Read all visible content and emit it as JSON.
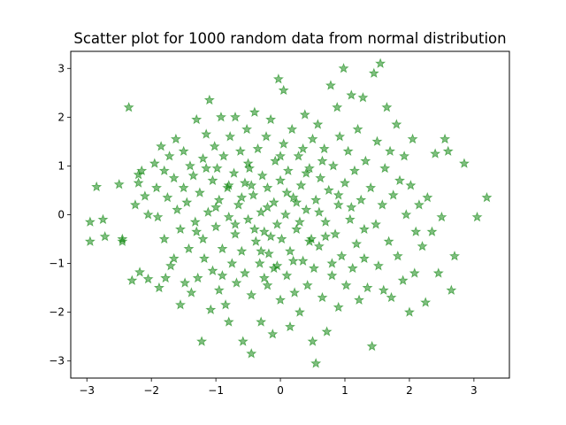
{
  "chart_data": {
    "type": "scatter",
    "title": "Scatter plot for 1000 random data from normal distribution",
    "xlabel": "",
    "ylabel": "",
    "xlim": [
      -3.25,
      3.55
    ],
    "ylim": [
      -3.35,
      3.35
    ],
    "x_ticks": [
      -3,
      -2,
      -1,
      0,
      1,
      2,
      3
    ],
    "y_ticks": [
      -3,
      -2,
      -1,
      0,
      1,
      2,
      3
    ],
    "x_tick_labels": [
      "−3",
      "−2",
      "−1",
      "0",
      "1",
      "2",
      "3"
    ],
    "y_tick_labels": [
      "−3",
      "−2",
      "−1",
      "0",
      "1",
      "2",
      "3"
    ],
    "grid": false,
    "legend": "none",
    "marker": "star",
    "point_count": 1000,
    "color": "#008000",
    "points": [
      [
        -2.95,
        -0.15
      ],
      [
        -2.95,
        -0.55
      ],
      [
        -2.85,
        0.57
      ],
      [
        -2.75,
        -0.1
      ],
      [
        -2.72,
        -0.45
      ],
      [
        -2.5,
        0.62
      ],
      [
        -2.45,
        -0.5
      ],
      [
        -2.45,
        -0.55
      ],
      [
        -2.35,
        2.2
      ],
      [
        -2.3,
        -1.35
      ],
      [
        -2.25,
        0.2
      ],
      [
        -2.2,
        0.82
      ],
      [
        -2.2,
        0.65
      ],
      [
        -2.18,
        -1.18
      ],
      [
        -2.15,
        0.9
      ],
      [
        -2.1,
        0.38
      ],
      [
        -2.05,
        0.0
      ],
      [
        -2.05,
        -1.32
      ],
      [
        -1.95,
        1.05
      ],
      [
        -1.92,
        0.55
      ],
      [
        -1.9,
        -0.05
      ],
      [
        -1.88,
        -1.5
      ],
      [
        -1.85,
        1.4
      ],
      [
        -1.8,
        0.9
      ],
      [
        -1.8,
        -0.5
      ],
      [
        -1.78,
        -1.3
      ],
      [
        -1.75,
        0.35
      ],
      [
        -1.72,
        1.2
      ],
      [
        -1.7,
        -1.05
      ],
      [
        -1.65,
        0.75
      ],
      [
        -1.65,
        -0.9
      ],
      [
        -1.62,
        1.55
      ],
      [
        -1.6,
        0.1
      ],
      [
        -1.55,
        -1.85
      ],
      [
        -1.55,
        -0.3
      ],
      [
        -1.5,
        1.3
      ],
      [
        -1.5,
        0.55
      ],
      [
        -1.48,
        -1.4
      ],
      [
        -1.45,
        0.25
      ],
      [
        -1.42,
        -0.7
      ],
      [
        -1.4,
        1.0
      ],
      [
        -1.38,
        -1.6
      ],
      [
        -1.35,
        0.8
      ],
      [
        -1.32,
        -0.15
      ],
      [
        -1.3,
        1.95
      ],
      [
        -1.28,
        -1.3
      ],
      [
        -1.25,
        0.45
      ],
      [
        -1.22,
        -2.6
      ],
      [
        -1.2,
        1.15
      ],
      [
        -1.2,
        -0.5
      ],
      [
        -1.18,
        -0.9
      ],
      [
        -1.15,
        1.65
      ],
      [
        -1.12,
        0.05
      ],
      [
        -1.1,
        2.35
      ],
      [
        -1.08,
        -1.95
      ],
      [
        -1.05,
        0.7
      ],
      [
        -1.05,
        -1.15
      ],
      [
        -1.02,
        1.4
      ],
      [
        -1.0,
        -0.25
      ],
      [
        -0.98,
        0.95
      ],
      [
        -0.95,
        -1.55
      ],
      [
        -0.95,
        0.3
      ],
      [
        -0.92,
        2.0
      ],
      [
        -0.9,
        -0.7
      ],
      [
        -0.88,
        1.2
      ],
      [
        -0.85,
        -1.85
      ],
      [
        -0.82,
        0.55
      ],
      [
        -0.8,
        -0.05
      ],
      [
        -0.8,
        -2.2
      ],
      [
        -0.78,
        1.6
      ],
      [
        -0.75,
        -1.0
      ],
      [
        -0.72,
        0.85
      ],
      [
        -0.7,
        -0.4
      ],
      [
        -0.7,
        2.0
      ],
      [
        -0.68,
        -1.4
      ],
      [
        -0.65,
        0.2
      ],
      [
        -0.62,
        1.3
      ],
      [
        -0.6,
        -0.75
      ],
      [
        -0.58,
        -2.6
      ],
      [
        -0.55,
        0.65
      ],
      [
        -0.55,
        -1.2
      ],
      [
        -0.52,
        1.75
      ],
      [
        -0.5,
        -0.1
      ],
      [
        -0.48,
        0.95
      ],
      [
        -0.45,
        -1.65
      ],
      [
        -0.45,
        -2.85
      ],
      [
        -0.42,
        0.4
      ],
      [
        -0.4,
        2.1
      ],
      [
        -0.38,
        -0.55
      ],
      [
        -0.35,
        1.35
      ],
      [
        -0.32,
        -1.0
      ],
      [
        -0.3,
        0.05
      ],
      [
        -0.3,
        -2.2
      ],
      [
        -0.28,
        0.8
      ],
      [
        -0.25,
        -0.35
      ],
      [
        -0.22,
        1.6
      ],
      [
        -0.2,
        -1.45
      ],
      [
        -0.2,
        0.55
      ],
      [
        -0.18,
        -0.8
      ],
      [
        -0.15,
        1.95
      ],
      [
        -0.12,
        -2.45
      ],
      [
        -0.1,
        0.25
      ],
      [
        -0.1,
        -1.1
      ],
      [
        -0.08,
        1.1
      ],
      [
        -0.05,
        -0.2
      ],
      [
        -0.03,
        2.78
      ],
      [
        0.0,
        0.7
      ],
      [
        0.0,
        -1.75
      ],
      [
        0.02,
        -0.5
      ],
      [
        0.05,
        1.45
      ],
      [
        0.05,
        2.55
      ],
      [
        0.08,
        0.0
      ],
      [
        0.1,
        -1.25
      ],
      [
        0.12,
        0.9
      ],
      [
        0.15,
        -2.3
      ],
      [
        0.15,
        -0.75
      ],
      [
        0.18,
        1.75
      ],
      [
        0.2,
        0.35
      ],
      [
        0.22,
        -1.6
      ],
      [
        0.25,
        -0.3
      ],
      [
        0.28,
        1.2
      ],
      [
        0.3,
        -2.0
      ],
      [
        0.32,
        0.6
      ],
      [
        0.35,
        -0.95
      ],
      [
        0.38,
        2.05
      ],
      [
        0.4,
        0.1
      ],
      [
        0.42,
        -1.45
      ],
      [
        0.45,
        0.95
      ],
      [
        0.48,
        -0.5
      ],
      [
        0.5,
        1.55
      ],
      [
        0.5,
        -2.6
      ],
      [
        0.52,
        -1.1
      ],
      [
        0.55,
        0.3
      ],
      [
        0.55,
        -3.05
      ],
      [
        0.58,
        1.85
      ],
      [
        0.6,
        -0.65
      ],
      [
        0.62,
        0.75
      ],
      [
        0.65,
        -1.7
      ],
      [
        0.68,
        1.35
      ],
      [
        0.7,
        -0.15
      ],
      [
        0.72,
        -2.4
      ],
      [
        0.75,
        0.5
      ],
      [
        0.78,
        2.65
      ],
      [
        0.8,
        -1.25
      ],
      [
        0.82,
        1.0
      ],
      [
        0.85,
        -0.4
      ],
      [
        0.88,
        2.2
      ],
      [
        0.9,
        -1.9
      ],
      [
        0.9,
        0.2
      ],
      [
        0.92,
        1.6
      ],
      [
        0.95,
        -0.85
      ],
      [
        0.98,
        3.0
      ],
      [
        1.0,
        0.65
      ],
      [
        1.02,
        -1.45
      ],
      [
        1.05,
        1.3
      ],
      [
        1.08,
        -0.1
      ],
      [
        1.1,
        2.45
      ],
      [
        1.12,
        -1.1
      ],
      [
        1.15,
        0.9
      ],
      [
        1.18,
        -0.6
      ],
      [
        1.2,
        1.75
      ],
      [
        1.22,
        -1.75
      ],
      [
        1.25,
        0.3
      ],
      [
        1.28,
        2.4
      ],
      [
        1.3,
        -0.9
      ],
      [
        1.32,
        1.1
      ],
      [
        1.35,
        -1.5
      ],
      [
        1.4,
        0.55
      ],
      [
        1.42,
        -2.7
      ],
      [
        1.45,
        2.9
      ],
      [
        1.48,
        -0.2
      ],
      [
        1.5,
        1.5
      ],
      [
        1.52,
        -1.05
      ],
      [
        1.55,
        3.1
      ],
      [
        1.58,
        0.2
      ],
      [
        1.6,
        -1.55
      ],
      [
        1.62,
        0.95
      ],
      [
        1.65,
        2.2
      ],
      [
        1.68,
        -0.55
      ],
      [
        1.7,
        1.3
      ],
      [
        1.72,
        -1.7
      ],
      [
        1.75,
        0.4
      ],
      [
        1.8,
        1.85
      ],
      [
        1.82,
        -0.85
      ],
      [
        1.85,
        0.7
      ],
      [
        1.9,
        -1.35
      ],
      [
        1.92,
        1.2
      ],
      [
        1.95,
        0.0
      ],
      [
        2.0,
        -2.0
      ],
      [
        2.02,
        0.6
      ],
      [
        2.05,
        1.55
      ],
      [
        2.08,
        -1.2
      ],
      [
        2.1,
        -0.35
      ],
      [
        2.15,
        0.2
      ],
      [
        2.2,
        -0.65
      ],
      [
        2.25,
        -1.8
      ],
      [
        2.28,
        0.35
      ],
      [
        2.35,
        -0.35
      ],
      [
        2.4,
        1.25
      ],
      [
        2.45,
        -1.2
      ],
      [
        2.5,
        -0.05
      ],
      [
        2.55,
        1.55
      ],
      [
        2.6,
        1.3
      ],
      [
        2.65,
        -1.55
      ],
      [
        2.7,
        -0.85
      ],
      [
        2.85,
        1.05
      ],
      [
        3.05,
        -0.05
      ],
      [
        3.2,
        0.35
      ],
      [
        -0.6,
        0.35
      ],
      [
        -0.4,
        -0.3
      ],
      [
        -0.2,
        0.15
      ],
      [
        0.1,
        0.45
      ],
      [
        0.3,
        -0.15
      ],
      [
        0.6,
        0.05
      ],
      [
        -0.8,
        0.6
      ],
      [
        -0.3,
        -0.75
      ],
      [
        0.4,
        0.85
      ],
      [
        0.7,
        -0.45
      ],
      [
        -1.0,
        0.15
      ],
      [
        -0.5,
        1.05
      ],
      [
        0.2,
        -0.95
      ],
      [
        0.9,
        0.4
      ],
      [
        -0.15,
        -0.45
      ],
      [
        0.45,
        -0.55
      ],
      [
        -0.7,
        -0.2
      ],
      [
        1.1,
        0.15
      ],
      [
        -1.3,
        -0.35
      ],
      [
        0.0,
        1.2
      ],
      [
        -0.45,
        0.6
      ],
      [
        0.25,
        0.25
      ],
      [
        0.65,
        1.1
      ],
      [
        -0.9,
        -1.25
      ],
      [
        1.3,
        -0.3
      ],
      [
        -0.05,
        -1.05
      ],
      [
        0.8,
        -1.0
      ],
      [
        -1.15,
        0.95
      ],
      [
        0.35,
        1.35
      ],
      [
        -0.25,
        -1.3
      ]
    ]
  }
}
